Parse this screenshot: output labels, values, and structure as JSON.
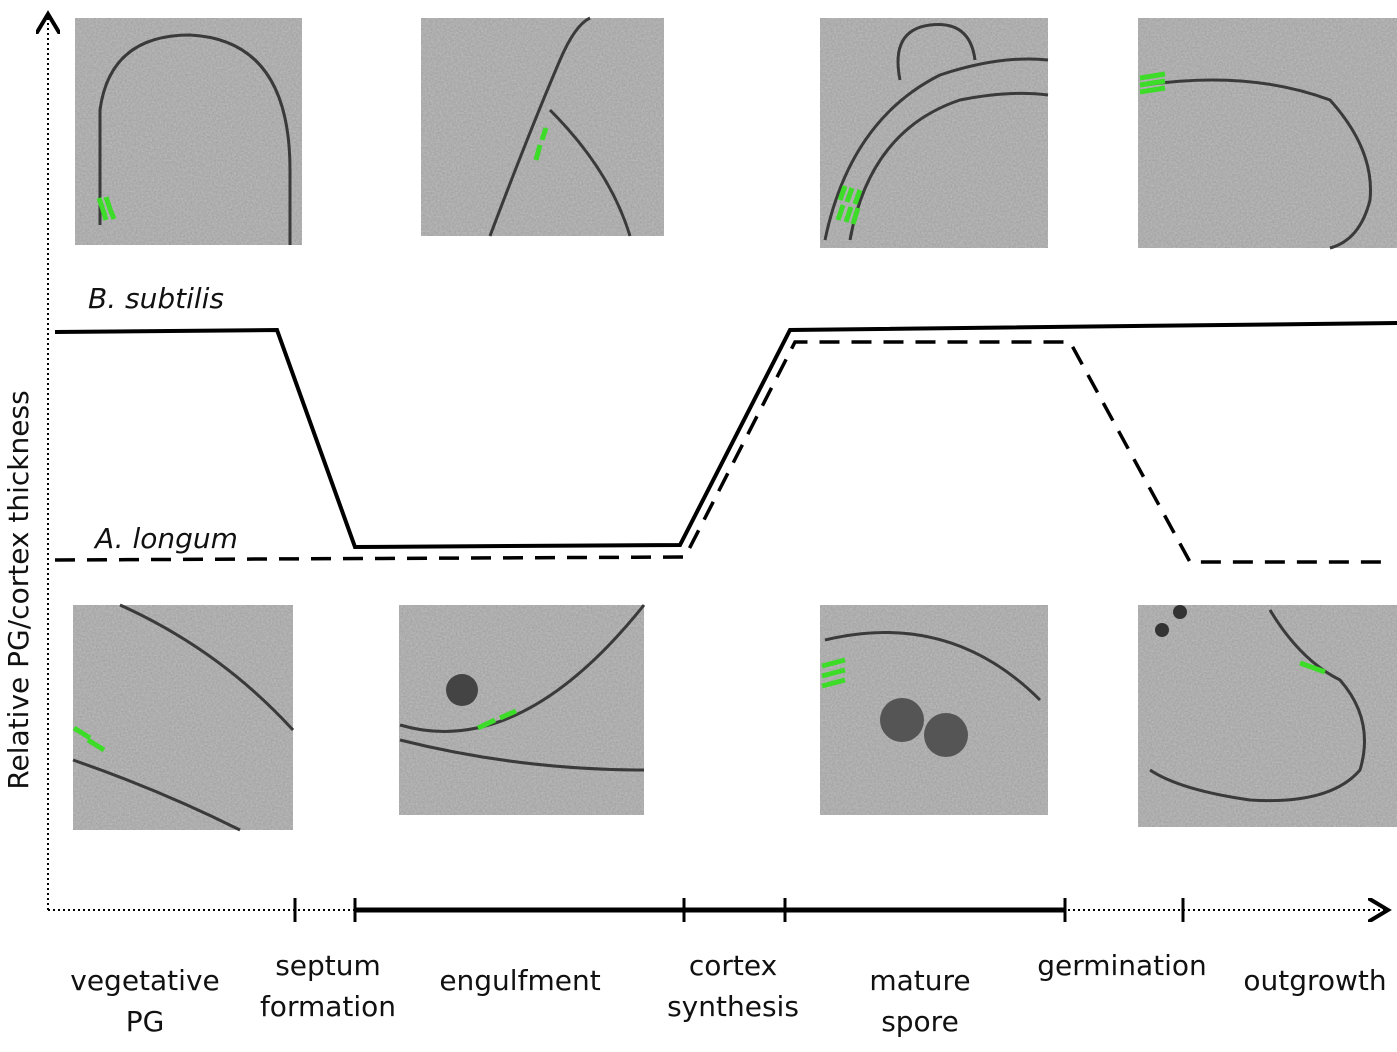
{
  "y_axis_label": "Relative PG/cortex thickness",
  "species": [
    {
      "label": "B. subtilis"
    },
    {
      "label": "A. longum"
    }
  ],
  "stages": [
    {
      "lines": [
        "vegetative",
        "PG"
      ]
    },
    {
      "lines": [
        "septum",
        "formation"
      ]
    },
    {
      "lines": [
        "engulfment"
      ]
    },
    {
      "lines": [
        "cortex",
        "synthesis"
      ]
    },
    {
      "lines": [
        "mature",
        "spore"
      ]
    },
    {
      "lines": [
        "germination"
      ]
    },
    {
      "lines": [
        "outgrowth"
      ]
    }
  ]
}
